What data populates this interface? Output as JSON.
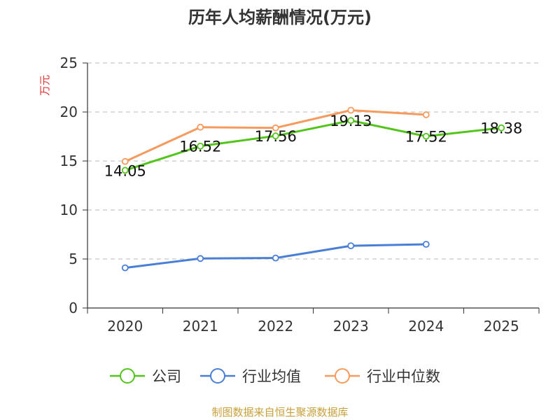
{
  "chart_data": {
    "type": "line",
    "title": "历年人均薪酬情况(万元)",
    "ylabel": "万元",
    "categories": [
      "2020",
      "2021",
      "2022",
      "2023",
      "2024",
      "2025"
    ],
    "ylim": [
      0,
      25
    ],
    "yticks": [
      0,
      5,
      10,
      15,
      20,
      25
    ],
    "grid": true,
    "legend_position": "bottom",
    "series": [
      {
        "name": "公司",
        "color": "#52c41a",
        "values": [
          14.05,
          16.52,
          17.56,
          19.13,
          17.52,
          18.38
        ],
        "show_labels": true
      },
      {
        "name": "行业均值",
        "color": "#4a7fd6",
        "values": [
          4.1,
          5.05,
          5.1,
          6.35,
          6.5,
          null
        ],
        "show_labels": false
      },
      {
        "name": "行业中位数",
        "color": "#f79a5d",
        "values": [
          14.95,
          18.45,
          18.38,
          20.18,
          19.72,
          null
        ],
        "show_labels": false
      }
    ],
    "data_labels": [
      "14.05",
      "16.52",
      "17.56",
      "19.13",
      "17.52",
      "18.38"
    ],
    "source": "制图数据来自恒生聚源数据库"
  }
}
